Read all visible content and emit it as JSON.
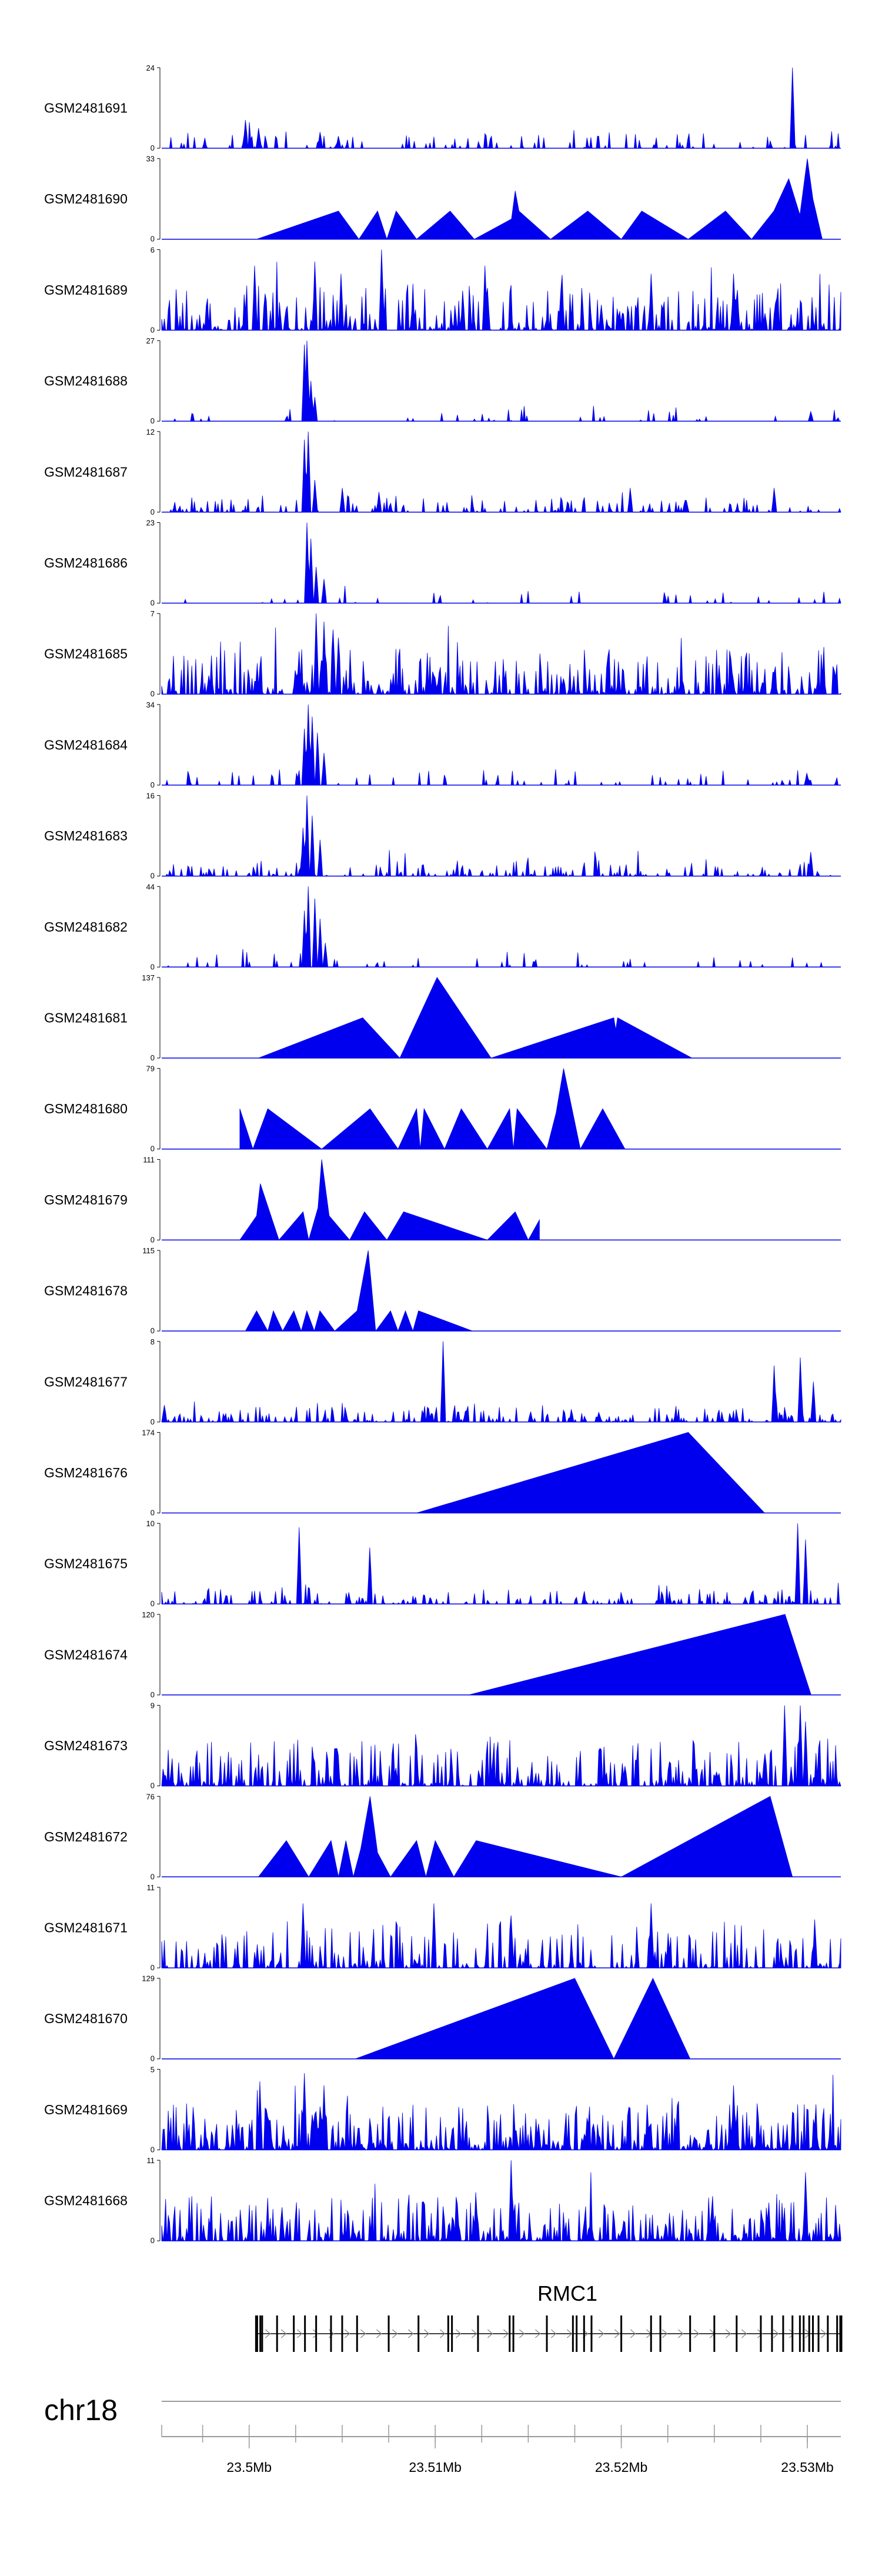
{
  "chart_data": {
    "type": "area",
    "title": "",
    "color": "#0000ee",
    "tracks": [
      {
        "name": "GSM2481691",
        "max": "24",
        "min": "0",
        "ymax": 24,
        "peaks": [
          [
            23.4998,
            0.35
          ],
          [
            23.5005,
            0.25
          ],
          [
            23.5038,
            0.2
          ],
          [
            23.5048,
            0.15
          ],
          [
            23.5292,
            1.0
          ]
        ],
        "density": 0.22,
        "mode": "sparse",
        "seed": 11
      },
      {
        "name": "GSM2481690",
        "max": "33",
        "min": "0",
        "ymax": 33,
        "shape": [
          [
            23.5004,
            0
          ],
          [
            23.5048,
            0.35
          ],
          [
            23.5059,
            0
          ],
          [
            23.5069,
            0.35
          ],
          [
            23.5074,
            0
          ],
          [
            23.5079,
            0.35
          ],
          [
            23.509,
            0
          ],
          [
            23.5108,
            0.35
          ],
          [
            23.5121,
            0
          ],
          [
            23.5141,
            0.25
          ],
          [
            23.5143,
            0.6
          ],
          [
            23.5145,
            0.35
          ],
          [
            23.5162,
            0
          ],
          [
            23.5182,
            0.35
          ],
          [
            23.52,
            0
          ],
          [
            23.5211,
            0.35
          ],
          [
            23.5236,
            0
          ],
          [
            23.5256,
            0.35
          ],
          [
            23.527,
            0
          ],
          [
            23.5282,
            0.35
          ],
          [
            23.529,
            0.75
          ],
          [
            23.5296,
            0.3
          ],
          [
            23.53,
            1.0
          ],
          [
            23.5303,
            0.5
          ],
          [
            23.5308,
            0
          ]
        ],
        "mode": "shape",
        "seed": 12
      },
      {
        "name": "GSM2481689",
        "max": "6",
        "min": "0",
        "ymax": 6,
        "density": 0.55,
        "mode": "dense",
        "seed": 13,
        "peaks": [
          [
            23.5003,
            0.8
          ],
          [
            23.5035,
            0.85
          ],
          [
            23.5049,
            0.7
          ],
          [
            23.5071,
            1.0
          ],
          [
            23.5127,
            0.8
          ],
          [
            23.5216,
            0.7
          ],
          [
            23.526,
            0.7
          ]
        ]
      },
      {
        "name": "GSM2481688",
        "max": "27",
        "min": "0",
        "ymax": 27,
        "peaks": [
          [
            23.503,
            0.95
          ],
          [
            23.5031,
            1.0
          ],
          [
            23.5033,
            0.5
          ],
          [
            23.5035,
            0.3
          ],
          [
            23.5302,
            0.12
          ]
        ],
        "density": 0.08,
        "mode": "sparse",
        "seed": 14
      },
      {
        "name": "GSM2481687",
        "max": "12",
        "min": "0",
        "ymax": 12,
        "peaks": [
          [
            23.503,
            0.9
          ],
          [
            23.5032,
            1.0
          ],
          [
            23.5035,
            0.4
          ],
          [
            23.505,
            0.3
          ],
          [
            23.507,
            0.25
          ],
          [
            23.5205,
            0.3
          ],
          [
            23.5282,
            0.3
          ]
        ],
        "density": 0.3,
        "mode": "sparse",
        "seed": 15
      },
      {
        "name": "GSM2481686",
        "max": "23",
        "min": "0",
        "ymax": 23,
        "peaks": [
          [
            23.5031,
            1.0
          ],
          [
            23.5033,
            0.8
          ],
          [
            23.5036,
            0.45
          ],
          [
            23.504,
            0.3
          ]
        ],
        "density": 0.08,
        "mode": "sparse",
        "seed": 16
      },
      {
        "name": "GSM2481685",
        "max": "7",
        "min": "0",
        "ymax": 7,
        "density": 0.6,
        "mode": "dense",
        "seed": 17,
        "peaks": [
          [
            23.5036,
            1.0
          ],
          [
            23.504,
            0.9
          ],
          [
            23.5045,
            0.8
          ],
          [
            23.5048,
            0.7
          ]
        ]
      },
      {
        "name": "GSM2481684",
        "max": "34",
        "min": "0",
        "ymax": 34,
        "peaks": [
          [
            23.503,
            0.7
          ],
          [
            23.5032,
            1.0
          ],
          [
            23.5034,
            0.85
          ],
          [
            23.5037,
            0.65
          ],
          [
            23.504,
            0.4
          ],
          [
            23.53,
            0.15
          ]
        ],
        "density": 0.12,
        "mode": "sparse",
        "seed": 18
      },
      {
        "name": "GSM2481683",
        "max": "16",
        "min": "0",
        "ymax": 16,
        "peaks": [
          [
            23.5029,
            0.6
          ],
          [
            23.5031,
            1.0
          ],
          [
            23.5034,
            0.75
          ],
          [
            23.5038,
            0.45
          ],
          [
            23.5302,
            0.3
          ]
        ],
        "density": 0.3,
        "mode": "sparse",
        "seed": 19
      },
      {
        "name": "GSM2481682",
        "max": "44",
        "min": "0",
        "ymax": 44,
        "peaks": [
          [
            23.503,
            0.7
          ],
          [
            23.5032,
            1.0
          ],
          [
            23.5035,
            0.85
          ],
          [
            23.5038,
            0.6
          ],
          [
            23.5041,
            0.3
          ]
        ],
        "density": 0.08,
        "mode": "sparse",
        "seed": 20
      },
      {
        "name": "GSM2481681",
        "max": "137",
        "min": "0",
        "ymax": 137,
        "shape": [
          [
            23.5005,
            0
          ],
          [
            23.5061,
            0.5
          ],
          [
            23.5081,
            0
          ],
          [
            23.5101,
            1.0
          ],
          [
            23.513,
            0
          ],
          [
            23.5196,
            0.5
          ],
          [
            23.5197,
            0.35
          ],
          [
            23.5198,
            0.5
          ],
          [
            23.5238,
            0
          ]
        ],
        "mode": "shape",
        "seed": 21
      },
      {
        "name": "GSM2481680",
        "max": "79",
        "min": "0",
        "ymax": 79,
        "shape": [
          [
            23.4995,
            0.5
          ],
          [
            23.5002,
            0
          ],
          [
            23.501,
            0.5
          ],
          [
            23.5039,
            0
          ],
          [
            23.5065,
            0.5
          ],
          [
            23.508,
            0
          ],
          [
            23.509,
            0.5
          ],
          [
            23.5092,
            0
          ],
          [
            23.5094,
            0.5
          ],
          [
            23.5105,
            0
          ],
          [
            23.5114,
            0.5
          ],
          [
            23.5128,
            0
          ],
          [
            23.514,
            0.5
          ],
          [
            23.5142,
            0
          ],
          [
            23.5144,
            0.5
          ],
          [
            23.516,
            0
          ],
          [
            23.5165,
            0.45
          ],
          [
            23.5169,
            1.0
          ],
          [
            23.5178,
            0
          ],
          [
            23.519,
            0.5
          ],
          [
            23.5202,
            0
          ]
        ],
        "mode": "shape",
        "seed": 22
      },
      {
        "name": "GSM2481679",
        "max": "111",
        "min": "0",
        "ymax": 111,
        "shape": [
          [
            23.4995,
            0
          ],
          [
            23.5004,
            0.3
          ],
          [
            23.5006,
            0.7
          ],
          [
            23.5016,
            0
          ],
          [
            23.5029,
            0.35
          ],
          [
            23.5032,
            0
          ],
          [
            23.5037,
            0.4
          ],
          [
            23.5039,
            1.0
          ],
          [
            23.5043,
            0.3
          ],
          [
            23.5054,
            0
          ],
          [
            23.5062,
            0.35
          ],
          [
            23.5074,
            0
          ],
          [
            23.5083,
            0.35
          ],
          [
            23.5128,
            0
          ],
          [
            23.5143,
            0.35
          ],
          [
            23.515,
            0
          ],
          [
            23.5156,
            0.25
          ]
        ],
        "mode": "shape",
        "seed": 23
      },
      {
        "name": "GSM2481678",
        "max": "115",
        "min": "0",
        "ymax": 115,
        "shape": [
          [
            23.4998,
            0
          ],
          [
            23.5004,
            0.25
          ],
          [
            23.501,
            0
          ],
          [
            23.5013,
            0.25
          ],
          [
            23.5018,
            0
          ],
          [
            23.5024,
            0.25
          ],
          [
            23.5028,
            0
          ],
          [
            23.5031,
            0.25
          ],
          [
            23.5035,
            0
          ],
          [
            23.5038,
            0.25
          ],
          [
            23.5046,
            0
          ],
          [
            23.5058,
            0.25
          ],
          [
            23.5064,
            1.0
          ],
          [
            23.5068,
            0
          ],
          [
            23.5076,
            0.25
          ],
          [
            23.508,
            0
          ],
          [
            23.5084,
            0.25
          ],
          [
            23.5088,
            0
          ],
          [
            23.5091,
            0.25
          ],
          [
            23.512,
            0
          ]
        ],
        "mode": "shape",
        "seed": 24
      },
      {
        "name": "GSM2481677",
        "max": "8",
        "min": "0",
        "ymax": 8,
        "density": 0.4,
        "mode": "sparse",
        "seed": 25,
        "peaks": [
          [
            23.5104,
            1.0
          ],
          [
            23.5282,
            0.7
          ],
          [
            23.5296,
            0.8
          ],
          [
            23.5303,
            0.5
          ]
        ]
      },
      {
        "name": "GSM2481676",
        "max": "174",
        "min": "0",
        "ymax": 174,
        "shape": [
          [
            23.509,
            0
          ],
          [
            23.5236,
            1.0
          ],
          [
            23.5277,
            0
          ]
        ],
        "mode": "shape",
        "seed": 26
      },
      {
        "name": "GSM2481675",
        "max": "10",
        "min": "0",
        "ymax": 10,
        "density": 0.35,
        "mode": "sparse",
        "seed": 27,
        "peaks": [
          [
            23.5027,
            0.95
          ],
          [
            23.5065,
            0.7
          ],
          [
            23.5295,
            1.0
          ],
          [
            23.5299,
            0.8
          ]
        ]
      },
      {
        "name": "GSM2481674",
        "max": "120",
        "min": "0",
        "ymax": 120,
        "shape": [
          [
            23.5118,
            0
          ],
          [
            23.5288,
            1.0
          ],
          [
            23.5302,
            0
          ]
        ],
        "mode": "shape",
        "seed": 28
      },
      {
        "name": "GSM2481673",
        "max": "9",
        "min": "0",
        "ymax": 9,
        "density": 0.5,
        "mode": "dense",
        "seed": 29,
        "peaks": [
          [
            23.5288,
            1.0
          ],
          [
            23.5296,
            1.0
          ],
          [
            23.5299,
            0.8
          ]
        ]
      },
      {
        "name": "GSM2481672",
        "max": "76",
        "min": "0",
        "ymax": 76,
        "shape": [
          [
            23.5005,
            0
          ],
          [
            23.502,
            0.45
          ],
          [
            23.5032,
            0
          ],
          [
            23.5044,
            0.45
          ],
          [
            23.5048,
            0
          ],
          [
            23.5052,
            0.45
          ],
          [
            23.5056,
            0
          ],
          [
            23.506,
            0.35
          ],
          [
            23.5065,
            1.0
          ],
          [
            23.5069,
            0.3
          ],
          [
            23.5076,
            0
          ],
          [
            23.509,
            0.45
          ],
          [
            23.5095,
            0
          ],
          [
            23.51,
            0.45
          ],
          [
            23.511,
            0
          ],
          [
            23.5122,
            0.45
          ],
          [
            23.52,
            0
          ],
          [
            23.528,
            1.0
          ],
          [
            23.5292,
            0
          ]
        ],
        "mode": "shape",
        "seed": 30
      },
      {
        "name": "GSM2481671",
        "max": "11",
        "min": "0",
        "ymax": 11,
        "density": 0.45,
        "mode": "dense",
        "seed": 31,
        "peaks": [
          [
            23.5029,
            0.8
          ],
          [
            23.5099,
            0.8
          ],
          [
            23.5141,
            0.65
          ],
          [
            23.5216,
            0.8
          ],
          [
            23.5304,
            0.6
          ]
        ]
      },
      {
        "name": "GSM2481670",
        "max": "129",
        "min": "0",
        "ymax": 129,
        "shape": [
          [
            23.5057,
            0
          ],
          [
            23.5175,
            1.0
          ],
          [
            23.5196,
            0
          ],
          [
            23.5217,
            1.0
          ],
          [
            23.5237,
            0
          ]
        ],
        "mode": "shape",
        "seed": 32
      },
      {
        "name": "GSM2481669",
        "max": "5",
        "min": "0",
        "ymax": 5,
        "density": 0.7,
        "mode": "dense",
        "seed": 33,
        "peaks": [
          [
            23.503,
            0.95
          ],
          [
            23.504,
            0.8
          ],
          [
            23.526,
            0.8
          ]
        ]
      },
      {
        "name": "GSM2481668",
        "max": "11",
        "min": "0",
        "ymax": 11,
        "density": 0.6,
        "mode": "dense",
        "seed": 34,
        "peaks": [
          [
            23.5141,
            1.0
          ],
          [
            23.5299,
            0.85
          ]
        ]
      }
    ],
    "x_range": [
      23.4953,
      23.5318
    ],
    "xticks": [
      {
        "value": 23.5,
        "label": "23.5Mb"
      },
      {
        "value": 23.51,
        "label": "23.51Mb"
      },
      {
        "value": 23.52,
        "label": "23.52Mb"
      },
      {
        "value": 23.53,
        "label": "23.53Mb"
      }
    ],
    "minor_tick_step": 0.0025,
    "gene": {
      "name": "RMC1",
      "start": 23.5004,
      "end": 23.5318,
      "strand": "+",
      "exons": [
        23.5004,
        23.5006,
        23.5007,
        23.5015,
        23.5024,
        23.503,
        23.5036,
        23.5044,
        23.505,
        23.5058,
        23.5075,
        23.5091,
        23.5107,
        23.5109,
        23.5123,
        23.514,
        23.5142,
        23.516,
        23.5174,
        23.5176,
        23.518,
        23.5184,
        23.52,
        23.5216,
        23.5221,
        23.5237,
        23.525,
        23.5262,
        23.5275,
        23.5281,
        23.5287,
        23.5292,
        23.5296,
        23.5298,
        23.5301,
        23.5303,
        23.5306,
        23.5311,
        23.5316,
        23.5318
      ]
    },
    "chromosome": "chr18",
    "xlabel": "",
    "ylabel": ""
  }
}
